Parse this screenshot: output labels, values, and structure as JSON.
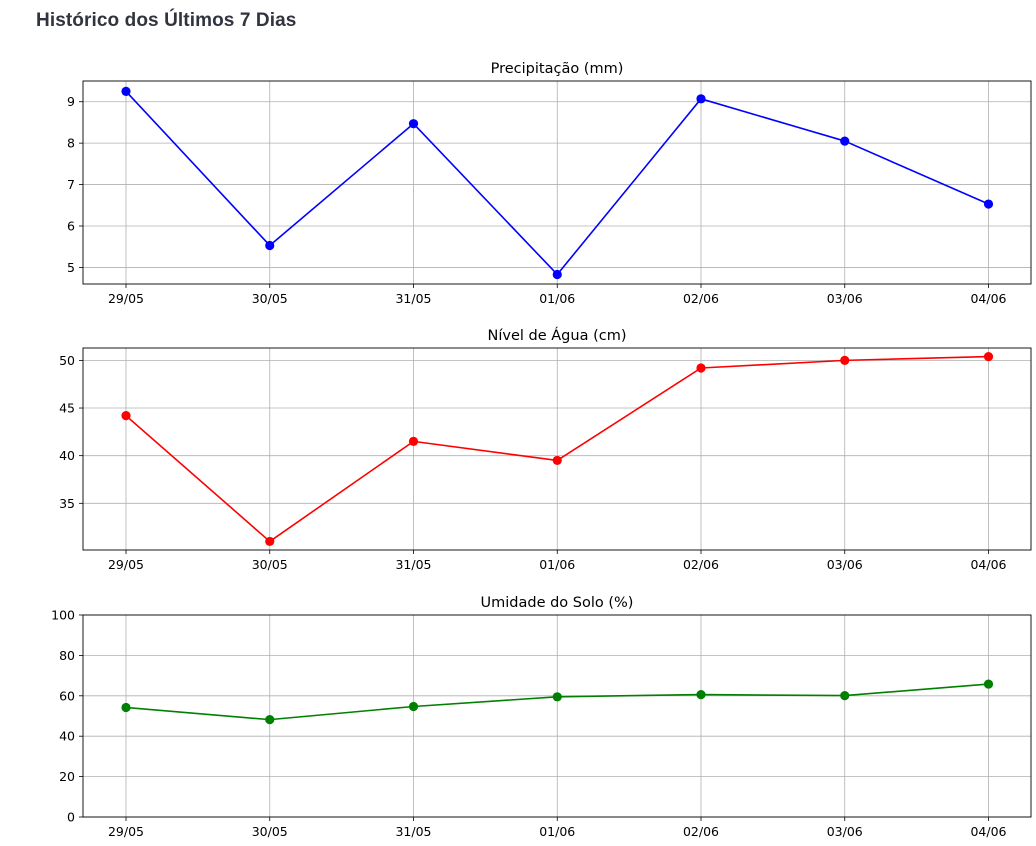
{
  "page": {
    "heading": "Histórico dos Últimos 7 Dias"
  },
  "chart_data": [
    {
      "type": "line",
      "title": "Precipitação (mm)",
      "xlabel": "",
      "ylabel": "",
      "categories": [
        "29/05",
        "30/05",
        "31/05",
        "01/06",
        "02/06",
        "03/06",
        "04/06"
      ],
      "values": [
        9.25,
        5.53,
        8.47,
        4.83,
        9.07,
        8.05,
        6.53
      ],
      "yticks": [
        5,
        6,
        7,
        8,
        9
      ],
      "ylim": [
        4.6,
        9.5
      ],
      "grid": true,
      "color": "#0000ff"
    },
    {
      "type": "line",
      "title": "Nível de Água (cm)",
      "xlabel": "",
      "ylabel": "",
      "categories": [
        "29/05",
        "30/05",
        "31/05",
        "01/06",
        "02/06",
        "03/06",
        "04/06"
      ],
      "values": [
        44.2,
        31.0,
        41.5,
        39.5,
        49.2,
        50.0,
        50.4
      ],
      "yticks": [
        35,
        40,
        45,
        50
      ],
      "ylim": [
        30.1,
        51.3
      ],
      "grid": true,
      "color": "#ff0000"
    },
    {
      "type": "line",
      "title": "Umidade do Solo (%)",
      "xlabel": "",
      "ylabel": "",
      "categories": [
        "29/05",
        "30/05",
        "31/05",
        "01/06",
        "02/06",
        "03/06",
        "04/06"
      ],
      "values": [
        54.2,
        48.2,
        54.7,
        59.5,
        60.6,
        60.1,
        65.8
      ],
      "yticks": [
        0,
        20,
        40,
        60,
        80,
        100
      ],
      "ylim": [
        0,
        100
      ],
      "grid": true,
      "color": "#008000"
    }
  ]
}
